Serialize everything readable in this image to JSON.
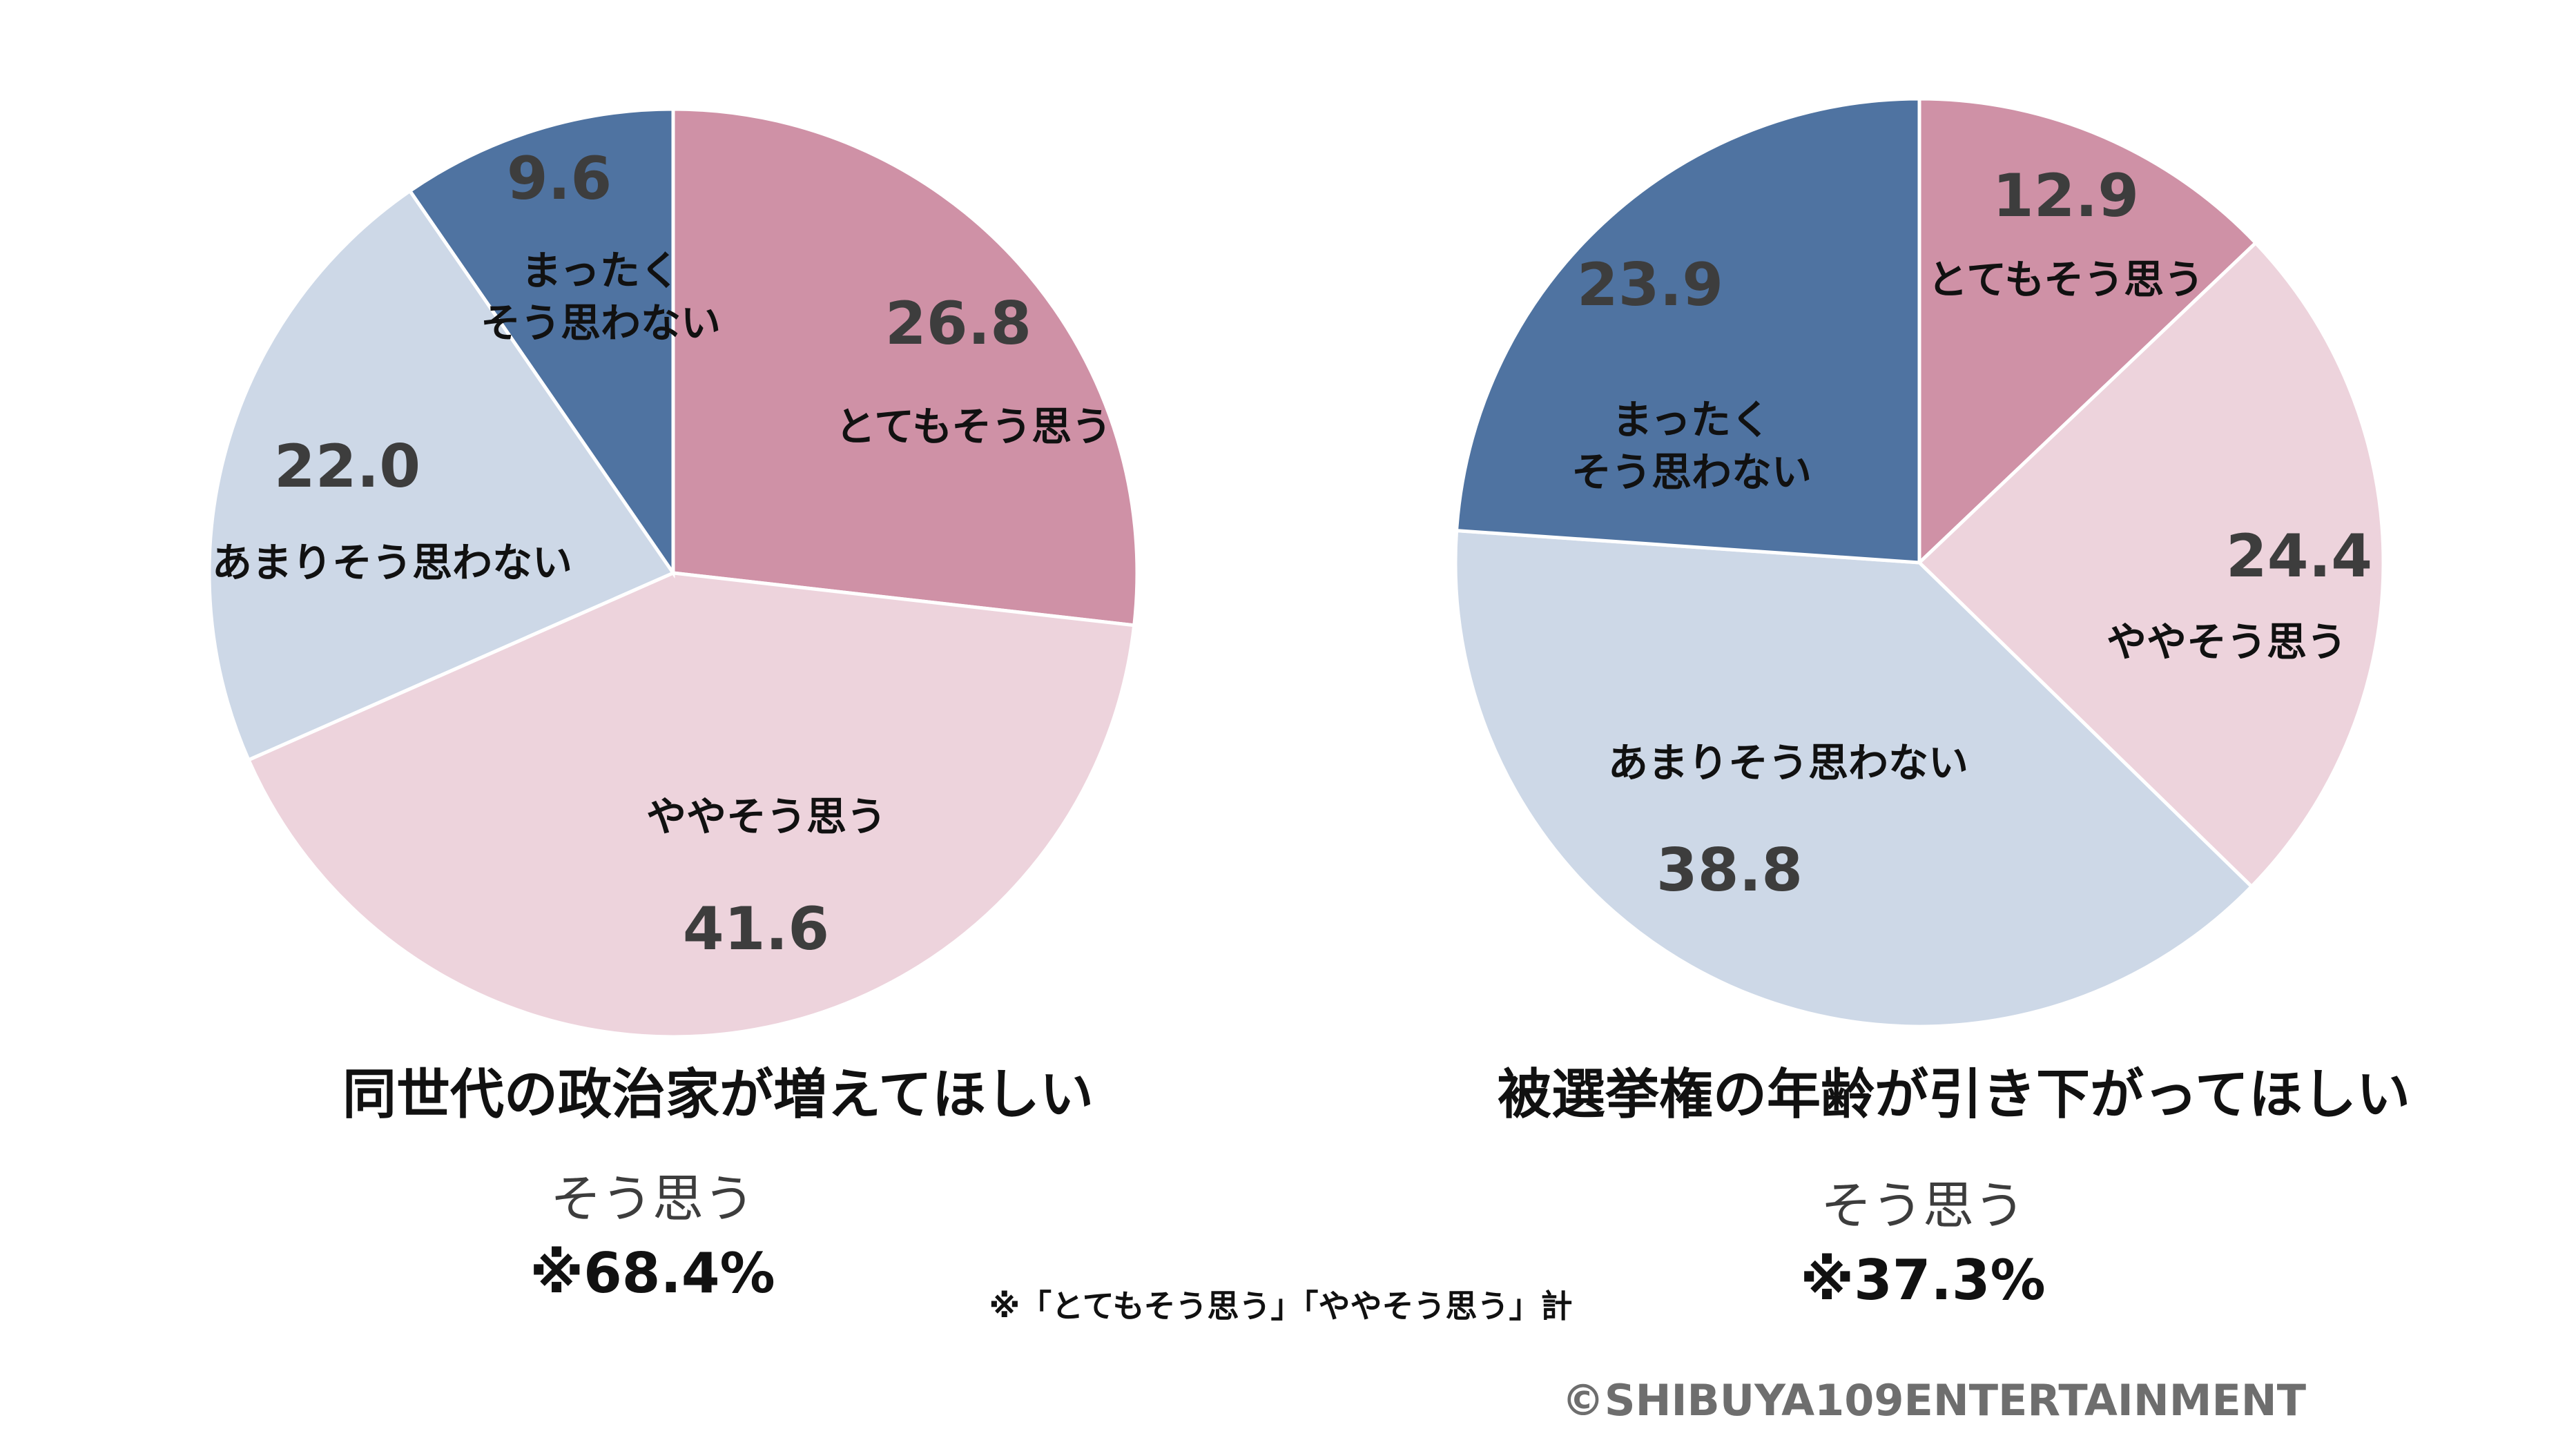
{
  "chart_data": [
    {
      "type": "pie",
      "title": "同世代の政治家が増えてほしい",
      "summary_label": "そう思う",
      "summary_value": "※68.4%",
      "slices": [
        {
          "lines": [
            "とてもそう思う"
          ],
          "value": 26.8,
          "value_label": "26.8",
          "color": "#CF91A6"
        },
        {
          "lines": [
            "ややそう思う"
          ],
          "value": 41.6,
          "value_label": "41.6",
          "color": "#EDD3DC"
        },
        {
          "lines": [
            "あまりそう思わない"
          ],
          "value": 22.0,
          "value_label": "22.0",
          "color": "#CDD8E7"
        },
        {
          "lines": [
            "まったく",
            "そう思わない"
          ],
          "value": 9.6,
          "value_label": "9.6",
          "color": "#4F73A1"
        }
      ]
    },
    {
      "type": "pie",
      "title": "被選挙権の年齢が引き下がってほしい",
      "summary_label": "そう思う",
      "summary_value": "※37.3%",
      "slices": [
        {
          "lines": [
            "とてもそう思う"
          ],
          "value": 12.9,
          "value_label": "12.9",
          "color": "#CF91A6"
        },
        {
          "lines": [
            "ややそう思う"
          ],
          "value": 24.4,
          "value_label": "24.4",
          "color": "#EDD3DC"
        },
        {
          "lines": [
            "あまりそう思わない"
          ],
          "value": 38.8,
          "value_label": "38.8",
          "color": "#CDD8E7"
        },
        {
          "lines": [
            "まったく",
            "そう思わない"
          ],
          "value": 23.9,
          "value_label": "23.9",
          "color": "#4F73A1"
        }
      ]
    }
  ],
  "footnote": "※「とてもそう思う」「ややそう思う」計",
  "copyright": "©SHIBUYA109ENTERTAINMENT"
}
